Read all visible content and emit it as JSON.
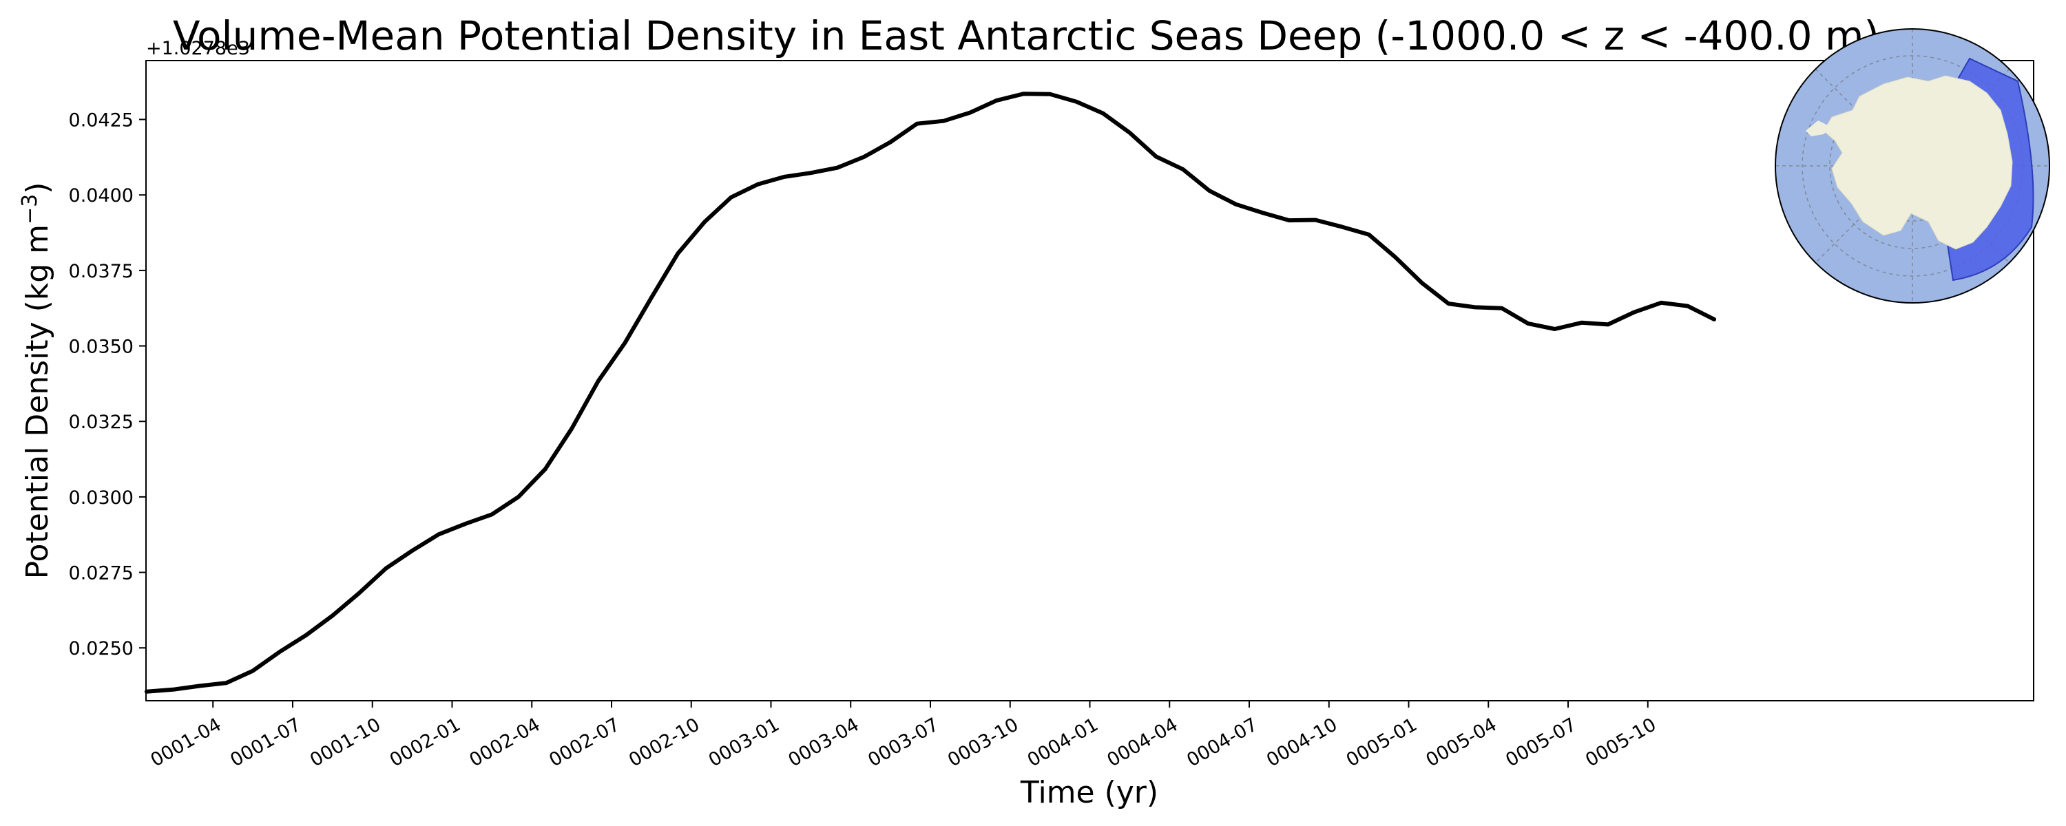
{
  "chart_data": {
    "type": "line",
    "title": "Volume-Mean Potential Density in East Antarctic Seas Deep (-1000.0 < z < -400.0 m)",
    "xlabel": "Time (yr)",
    "ylabel_main": "Potential Density (kg m",
    "ylabel_sup": "−3",
    "ylabel_close": ")",
    "y_offset_label": "+1.0278e3",
    "ylim": [
      0.02325,
      0.04445
    ],
    "yticks": [
      "0.0250",
      "0.0275",
      "0.0300",
      "0.0325",
      "0.0350",
      "0.0375",
      "0.0400",
      "0.0425"
    ],
    "xlim": [
      0.04,
      5.96
    ],
    "xticks": [
      {
        "label": "0001-04",
        "t": 0.25
      },
      {
        "label": "0001-07",
        "t": 0.5
      },
      {
        "label": "0001-10",
        "t": 0.75
      },
      {
        "label": "0002-01",
        "t": 1.0
      },
      {
        "label": "0002-04",
        "t": 1.25
      },
      {
        "label": "0002-07",
        "t": 1.5
      },
      {
        "label": "0002-10",
        "t": 1.75
      },
      {
        "label": "0003-01",
        "t": 2.0
      },
      {
        "label": "0003-04",
        "t": 2.25
      },
      {
        "label": "0003-07",
        "t": 2.5
      },
      {
        "label": "0003-10",
        "t": 2.75
      },
      {
        "label": "0004-01",
        "t": 3.0
      },
      {
        "label": "0004-04",
        "t": 3.25
      },
      {
        "label": "0004-07",
        "t": 3.5
      },
      {
        "label": "0004-10",
        "t": 3.75
      },
      {
        "label": "0005-01",
        "t": 4.0
      },
      {
        "label": "0005-04",
        "t": 4.25
      },
      {
        "label": "0005-07",
        "t": 4.5
      },
      {
        "label": "0005-10",
        "t": 4.75
      }
    ],
    "series": [
      {
        "color": "#000000",
        "x": [
          0.042,
          0.125,
          0.208,
          0.292,
          0.375,
          0.458,
          0.542,
          0.625,
          0.708,
          0.792,
          0.875,
          0.958,
          1.042,
          1.125,
          1.208,
          1.292,
          1.375,
          1.458,
          1.542,
          1.625,
          1.708,
          1.792,
          1.875,
          1.958,
          2.042,
          2.125,
          2.208,
          2.292,
          2.375,
          2.458,
          2.542,
          2.625,
          2.708,
          2.792,
          2.875,
          2.958,
          3.042,
          3.125,
          3.208,
          3.292,
          3.375,
          3.458,
          3.542,
          3.625,
          3.708,
          3.792,
          3.875,
          3.958,
          4.042,
          4.125,
          4.208,
          4.292,
          4.375,
          4.458,
          4.542,
          4.625,
          4.708,
          4.792,
          4.875,
          4.958
        ],
        "y": [
          0.02355,
          0.02362,
          0.02374,
          0.02384,
          0.02424,
          0.02486,
          0.02542,
          0.02607,
          0.02681,
          0.02763,
          0.02822,
          0.02876,
          0.02911,
          0.02942,
          0.03,
          0.03092,
          0.03226,
          0.03383,
          0.0351,
          0.0366,
          0.03806,
          0.03911,
          0.03992,
          0.04035,
          0.0406,
          0.04073,
          0.0409,
          0.04126,
          0.04175,
          0.04236,
          0.04245,
          0.04273,
          0.04313,
          0.04335,
          0.04334,
          0.04309,
          0.0427,
          0.04206,
          0.04127,
          0.04085,
          0.04014,
          0.03969,
          0.03941,
          0.03916,
          0.03917,
          0.03894,
          0.03869,
          0.03794,
          0.03708,
          0.0364,
          0.03628,
          0.03625,
          0.03574,
          0.03556,
          0.03577,
          0.03571,
          0.03612,
          0.03643,
          0.03632,
          0.03588
        ]
      }
    ]
  },
  "inset_map": {
    "ocean_color": "#9db6e3",
    "land_color": "#efefdb",
    "region_color": "#4e5fe8"
  }
}
